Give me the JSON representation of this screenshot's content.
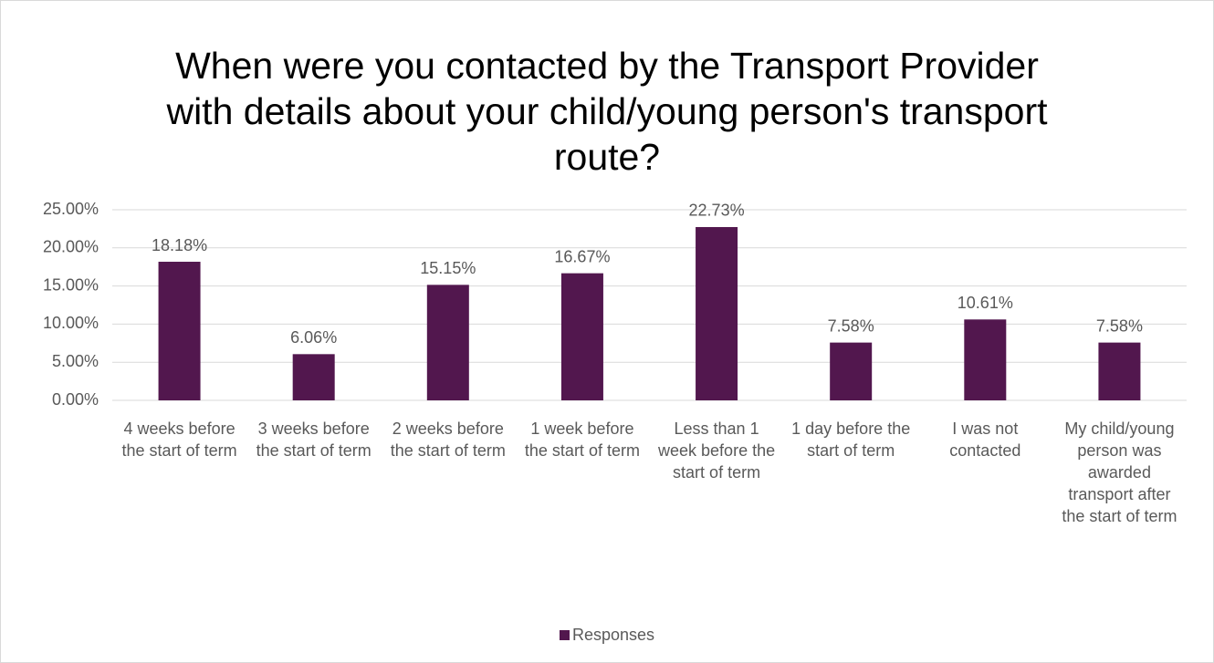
{
  "chart_data": {
    "type": "bar",
    "title": "When were you contacted by the Transport Provider with details about your child/young person's transport route?",
    "categories": [
      "4 weeks before the start of term",
      "3 weeks before the start of term",
      "2 weeks before the start of term",
      "1 week before the start of term",
      "Less than 1 week before the start of term",
      "1 day before the start of term",
      "I was not contacted",
      "My child/young person was awarded transport after the start of term"
    ],
    "series": [
      {
        "name": "Responses",
        "color": "#52174e",
        "values": [
          18.18,
          6.06,
          15.15,
          16.67,
          22.73,
          7.58,
          10.61,
          7.58
        ],
        "value_labels": [
          "18.18%",
          "6.06%",
          "15.15%",
          "16.67%",
          "22.73%",
          "7.58%",
          "10.61%",
          "7.58%"
        ]
      }
    ],
    "ylim": [
      0,
      25
    ],
    "yticks": [
      {
        "value": 0,
        "label": "0.00%"
      },
      {
        "value": 5,
        "label": "5.00%"
      },
      {
        "value": 10,
        "label": "10.00%"
      },
      {
        "value": 15,
        "label": "15.00%"
      },
      {
        "value": 20,
        "label": "20.00%"
      },
      {
        "value": 25,
        "label": "25.00%"
      }
    ],
    "grid": true,
    "legend": "bottom"
  }
}
